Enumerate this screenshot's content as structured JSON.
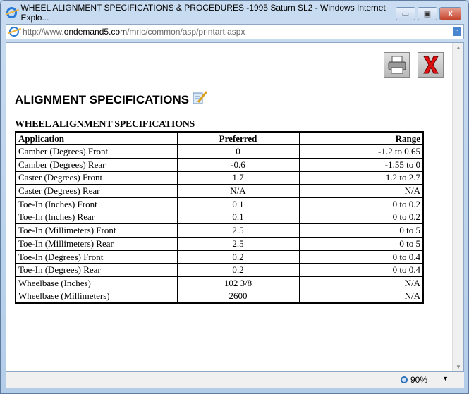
{
  "window": {
    "title": "WHEEL ALIGNMENT SPECIFICATIONS & PROCEDURES -1995 Saturn SL2 - Windows Internet Explo...",
    "url_prefix": "http://www.",
    "url_domain": "ondemand5.com",
    "url_path": "/mric/common/asp/printart.aspx",
    "minimize": "▭",
    "maximize": "▣",
    "close": "X"
  },
  "page": {
    "heading": "ALIGNMENT SPECIFICATIONS",
    "table_caption": "WHEEL ALIGNMENT SPECIFICATIONS",
    "columns": [
      "Application",
      "Preferred",
      "Range"
    ],
    "rows": [
      [
        "Camber (Degrees) Front",
        "0",
        "-1.2 to 0.65"
      ],
      [
        "Camber (Degrees) Rear",
        "-0.6",
        "-1.55 to 0"
      ],
      [
        "Caster (Degrees) Front",
        "1.7",
        "1.2 to 2.7"
      ],
      [
        "Caster (Degrees) Rear",
        "N/A",
        "N/A"
      ],
      [
        "Toe-In (Inches) Front",
        "0.1",
        "0 to 0.2"
      ],
      [
        "Toe-In (Inches) Rear",
        "0.1",
        "0 to 0.2"
      ],
      [
        "Toe-In (Millimeters) Front",
        "2.5",
        "0 to 5"
      ],
      [
        "Toe-In (Millimeters) Rear",
        "2.5",
        "0 to 5"
      ],
      [
        "Toe-In (Degrees) Front",
        "0.2",
        "0 to 0.4"
      ],
      [
        "Toe-In (Degrees) Rear",
        "0.2",
        "0 to 0.4"
      ],
      [
        "Wheelbase (Inches)",
        "102 3/8",
        "N/A"
      ],
      [
        "Wheelbase (Millimeters)",
        "2600",
        "N/A"
      ]
    ]
  },
  "status": {
    "zoom": "90%"
  }
}
